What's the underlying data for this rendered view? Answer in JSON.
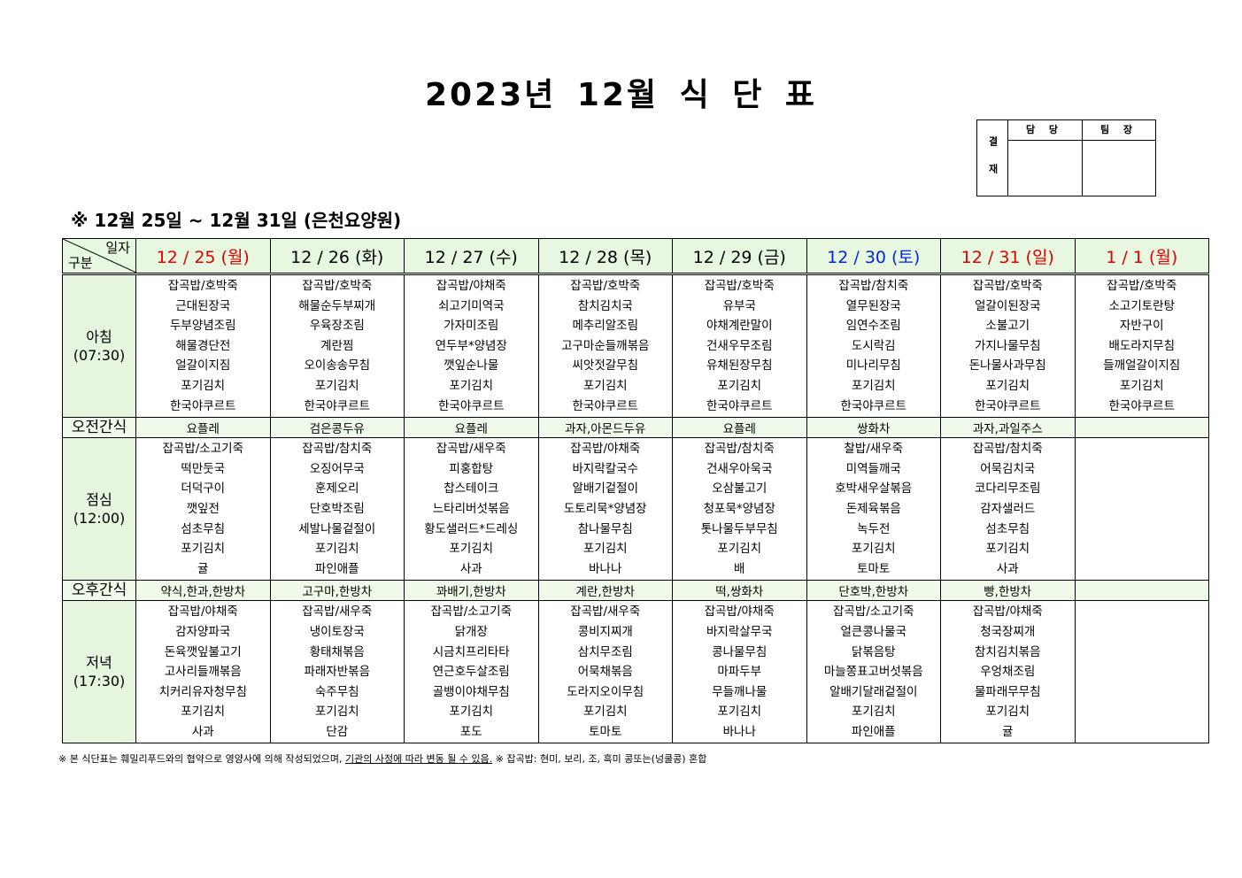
{
  "title": "2023년 12월 식 단 표",
  "approval": {
    "label": "결 재",
    "headers": [
      "담 당",
      "팀 장"
    ]
  },
  "subtitle": "※ 12월 25일 ~ 12월 31일 (은천요양원)",
  "corner": {
    "top": "일자",
    "bottom": "구분"
  },
  "colors": {
    "red": "#e00000",
    "blue": "#0028d8",
    "black": "#000000",
    "header_bg": "#e8f8e0",
    "label_bg": "#e6f5dd"
  },
  "days": [
    {
      "label": "12 / 25 (월)",
      "color": "red"
    },
    {
      "label": "12 / 26 (화)",
      "color": "black"
    },
    {
      "label": "12 / 27 (수)",
      "color": "black"
    },
    {
      "label": "12 / 28 (목)",
      "color": "black"
    },
    {
      "label": "12 / 29 (금)",
      "color": "black"
    },
    {
      "label": "12 / 30 (토)",
      "color": "blue"
    },
    {
      "label": "12 / 31 (일)",
      "color": "red"
    },
    {
      "label": "1 / 1 (월)",
      "color": "red"
    }
  ],
  "meals": [
    {
      "name": "아침",
      "time": "(07:30)",
      "type": "menu",
      "items": [
        [
          "잡곡밥/호박죽",
          "근대된장국",
          "두부양념조림",
          "해물경단전",
          "얼갈이지짐",
          "포기김치",
          "한국야쿠르트"
        ],
        [
          "잡곡밥/호박죽",
          "해물순두부찌개",
          "우육장조림",
          "계란찜",
          "오이송송무침",
          "포기김치",
          "한국야쿠르트"
        ],
        [
          "잡곡밥/야채죽",
          "쇠고기미역국",
          "가자미조림",
          "연두부*양념장",
          "깻잎순나물",
          "포기김치",
          "한국야쿠르트"
        ],
        [
          "잡곡밥/호박죽",
          "참치김치국",
          "메추리알조림",
          "고구마순들깨볶음",
          "씨앗젓갈무침",
          "포기김치",
          "한국야쿠르트"
        ],
        [
          "잡곡밥/호박죽",
          "유부국",
          "야채계란말이",
          "건새우무조림",
          "유채된장무침",
          "포기김치",
          "한국야쿠르트"
        ],
        [
          "잡곡밥/참치죽",
          "열무된장국",
          "임연수조림",
          "도시락김",
          "미나리무침",
          "포기김치",
          "한국야쿠르트"
        ],
        [
          "잡곡밥/호박죽",
          "얼갈이된장국",
          "소불고기",
          "가지나물무침",
          "돈나물사과무침",
          "포기김치",
          "한국야쿠르트"
        ],
        [
          "잡곡밥/호박죽",
          "소고기토란탕",
          "자반구이",
          "배도라지무침",
          "들깨얼갈이지짐",
          "포기김치",
          "한국야쿠르트"
        ]
      ]
    },
    {
      "name": "오전간식",
      "type": "snack",
      "items": [
        "요플레",
        "검은콩두유",
        "요플레",
        "과자,아몬드두유",
        "요플레",
        "쌍화차",
        "과자,과일주스",
        ""
      ]
    },
    {
      "name": "점심",
      "time": "(12:00)",
      "type": "menu",
      "items": [
        [
          "잡곡밥/소고기죽",
          "떡만둣국",
          "더덕구이",
          "깻잎전",
          "섬초무침",
          "포기김치",
          "귤"
        ],
        [
          "잡곡밥/참치죽",
          "오징어무국",
          "훈제오리",
          "단호박조림",
          "세발나물겉절이",
          "포기김치",
          "파인애플"
        ],
        [
          "잡곡밥/새우죽",
          "피홍합탕",
          "찹스테이크",
          "느타리버섯볶음",
          "황도샐러드*드레싱",
          "포기김치",
          "사과"
        ],
        [
          "잡곡밥/야채죽",
          "바지락칼국수",
          "알배기겉절이",
          "도토리묵*양념장",
          "참나물무침",
          "포기김치",
          "바나나"
        ],
        [
          "잡곡밥/참치죽",
          "건새우아욱국",
          "오삼불고기",
          "청포묵*양념장",
          "톳나물두부무침",
          "포기김치",
          "배"
        ],
        [
          "찰밥/새우죽",
          "미역들깨국",
          "호박새우살볶음",
          "돈제육볶음",
          "녹두전",
          "포기김치",
          "토마토"
        ],
        [
          "잡곡밥/참치죽",
          "어묵김치국",
          "코다리무조림",
          "감자샐러드",
          "섬초무침",
          "포기김치",
          "사과"
        ],
        []
      ]
    },
    {
      "name": "오후간식",
      "type": "snack",
      "items": [
        "약식,한과,한방차",
        "고구마,한방차",
        "꽈배기,한방차",
        "계란,한방차",
        "떡,쌍화차",
        "단호박,한방차",
        "빵,한방차",
        ""
      ]
    },
    {
      "name": "저녁",
      "time": "(17:30)",
      "type": "menu",
      "items": [
        [
          "잡곡밥/야채죽",
          "감자양파국",
          "돈육깻잎불고기",
          "고사리들깨볶음",
          "치커리유자청무침",
          "포기김치",
          "사과"
        ],
        [
          "잡곡밥/새우죽",
          "냉이토장국",
          "황태채볶음",
          "파래자반볶음",
          "숙주무침",
          "포기김치",
          "단감"
        ],
        [
          "잡곡밥/소고기죽",
          "닭개장",
          "시금치프리타타",
          "연근호두살조림",
          "골뱅이야채무침",
          "포기김치",
          "포도"
        ],
        [
          "잡곡밥/새우죽",
          "콩비지찌개",
          "삼치무조림",
          "어묵채볶음",
          "도라지오이무침",
          "포기김치",
          "토마토"
        ],
        [
          "잡곡밥/야채죽",
          "바지락살무국",
          "콩나물무침",
          "마파두부",
          "무들깨나물",
          "포기김치",
          "바나나"
        ],
        [
          "잡곡밥/소고기죽",
          "얼큰콩나물국",
          "닭볶음탕",
          "마늘쫑표고버섯볶음",
          "알배기달래겉절이",
          "포기김치",
          "파인애플"
        ],
        [
          "잡곡밥/야채죽",
          "청국장찌개",
          "참치김치볶음",
          "우엉채조림",
          "물파래무무침",
          "포기김치",
          "귤"
        ],
        []
      ]
    }
  ],
  "footnote": {
    "part1": "※ 본 식단표는 훼밀리푸드와의 협약으로 영양사에 의해 작성되었으며, ",
    "underlined": "기관의 사정에 따라 변동 될 수 있음.",
    "part2": " ※ 잡곡밥: 현미, 보리, 조, 흑미 콩또는(넝쿨콩) 혼합"
  }
}
